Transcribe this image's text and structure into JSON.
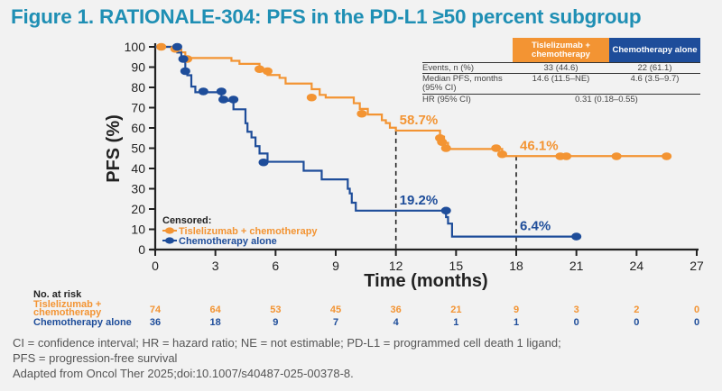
{
  "title": "Figure 1. RATIONALE-304: PFS in the PD-L1 ≥50 percent subgroup",
  "colors": {
    "title": "#1f8fb4",
    "tislelizumab": "#f39433",
    "chemo": "#1e4d9a",
    "axis": "#222222"
  },
  "summary_table": {
    "headers": [
      "Tislelizumab + chemotherapy",
      "Chemotherapy alone"
    ],
    "rows": [
      {
        "label": "Events, n (%)",
        "tislelizumab": "33 (44.6)",
        "chemo": "22 (61.1)"
      },
      {
        "label": "Median PFS, months (95% CI)",
        "tislelizumab": "14.6 (11.5–NE)",
        "chemo": "4.6 (3.5–9.7)"
      },
      {
        "label": "HR (95% CI)",
        "combined": "0.31 (0.18–0.55)"
      }
    ]
  },
  "legend": {
    "title": "Censored:",
    "items": [
      "Tislelizumab + chemotherapy",
      "Chemotherapy alone"
    ]
  },
  "at_risk": {
    "title": "No. at risk",
    "rows": [
      {
        "label": "Tislelizumab + chemotherapy",
        "values": [
          74,
          64,
          53,
          45,
          36,
          21,
          9,
          3,
          2,
          0
        ]
      },
      {
        "label": "Chemotherapy alone",
        "values": [
          36,
          18,
          9,
          7,
          4,
          1,
          1,
          0,
          0,
          0
        ]
      }
    ]
  },
  "footer": {
    "lines": [
      "CI = confidence interval; HR = hazard ratio; NE = not estimable; PD-L1 = programmed cell death 1 ligand;",
      "PFS = progression-free survival",
      "Adapted from Oncol Ther 2025;doi:10.1007/s40487-025-00378-8."
    ]
  },
  "chart_data": {
    "type": "line",
    "subtype": "kaplan-meier step",
    "title": "Figure 1. RATIONALE-304: PFS in the PD-L1 ≥50 percent subgroup",
    "xlabel": "Time (months)",
    "ylabel": "PFS (%)",
    "xlim": [
      0,
      27
    ],
    "ylim": [
      0,
      100
    ],
    "xticks": [
      0,
      3,
      6,
      9,
      12,
      15,
      18,
      21,
      24,
      27
    ],
    "yticks": [
      0,
      10,
      20,
      30,
      40,
      50,
      60,
      70,
      80,
      90,
      100
    ],
    "grid": false,
    "legend_position": "bottom-left",
    "series": [
      {
        "name": "Tislelizumab + chemotherapy",
        "color": "#f39433",
        "steps": [
          [
            0,
            100
          ],
          [
            1.0,
            98.6
          ],
          [
            1.3,
            97.3
          ],
          [
            1.5,
            94.5
          ],
          [
            3.8,
            93.1
          ],
          [
            4.2,
            91.6
          ],
          [
            5.2,
            88.9
          ],
          [
            5.6,
            86.1
          ],
          [
            6.2,
            84.7
          ],
          [
            6.5,
            81.9
          ],
          [
            7.8,
            79.1
          ],
          [
            8.2,
            76.3
          ],
          [
            8.5,
            75.0
          ],
          [
            9.9,
            72.2
          ],
          [
            10.2,
            69.4
          ],
          [
            10.6,
            66.6
          ],
          [
            11.3,
            63.8
          ],
          [
            11.5,
            62.4
          ],
          [
            11.7,
            60.1
          ],
          [
            12.0,
            58.7
          ],
          [
            14.2,
            55.7
          ],
          [
            14.4,
            52.6
          ],
          [
            14.6,
            49.6
          ],
          [
            17.3,
            46.1
          ],
          [
            25.5,
            46.1
          ]
        ],
        "censored": [
          [
            0.3,
            100
          ],
          [
            1.0,
            99
          ],
          [
            1.6,
            94
          ],
          [
            5.2,
            89
          ],
          [
            5.6,
            88
          ],
          [
            7.8,
            75
          ],
          [
            10.3,
            67
          ],
          [
            14.2,
            55
          ],
          [
            14.3,
            53
          ],
          [
            14.5,
            50
          ],
          [
            17.0,
            50
          ],
          [
            17.3,
            47
          ],
          [
            20.2,
            46
          ],
          [
            20.5,
            46
          ],
          [
            23.0,
            46
          ],
          [
            25.5,
            46
          ]
        ],
        "annotations": [
          {
            "x": 12,
            "y": 58.7,
            "label": "58.7%"
          },
          {
            "x": 18,
            "y": 46.1,
            "label": "46.1%"
          }
        ]
      },
      {
        "name": "Chemotherapy alone",
        "color": "#1e4d9a",
        "steps": [
          [
            0,
            100
          ],
          [
            1.1,
            97.2
          ],
          [
            1.3,
            94.4
          ],
          [
            1.5,
            88.8
          ],
          [
            1.6,
            86.0
          ],
          [
            1.8,
            80.4
          ],
          [
            2.0,
            77.6
          ],
          [
            3.3,
            73.4
          ],
          [
            3.9,
            69.2
          ],
          [
            4.5,
            62.3
          ],
          [
            4.6,
            58.1
          ],
          [
            4.8,
            55.3
          ],
          [
            5.0,
            51.0
          ],
          [
            5.2,
            47.4
          ],
          [
            5.6,
            43.3
          ],
          [
            7.4,
            38.9
          ],
          [
            8.3,
            34.6
          ],
          [
            9.6,
            30.0
          ],
          [
            9.7,
            27.7
          ],
          [
            9.8,
            23.1
          ],
          [
            10.0,
            19.2
          ],
          [
            14.5,
            16.0
          ],
          [
            14.6,
            12.8
          ],
          [
            14.8,
            6.4
          ],
          [
            21.0,
            6.4
          ]
        ],
        "censored": [
          [
            1.1,
            100
          ],
          [
            1.4,
            94
          ],
          [
            1.5,
            88
          ],
          [
            2.4,
            78
          ],
          [
            3.3,
            78
          ],
          [
            3.4,
            74
          ],
          [
            3.9,
            74
          ],
          [
            5.4,
            43
          ],
          [
            14.5,
            19.2
          ],
          [
            21.0,
            6.4
          ]
        ],
        "annotations": [
          {
            "x": 12,
            "y": 19.2,
            "label": "19.2%"
          },
          {
            "x": 18,
            "y": 6.4,
            "label": "6.4%"
          }
        ]
      }
    ],
    "reference_lines": [
      {
        "x": 12,
        "style": "dashed"
      },
      {
        "x": 18,
        "style": "dashed"
      }
    ]
  }
}
